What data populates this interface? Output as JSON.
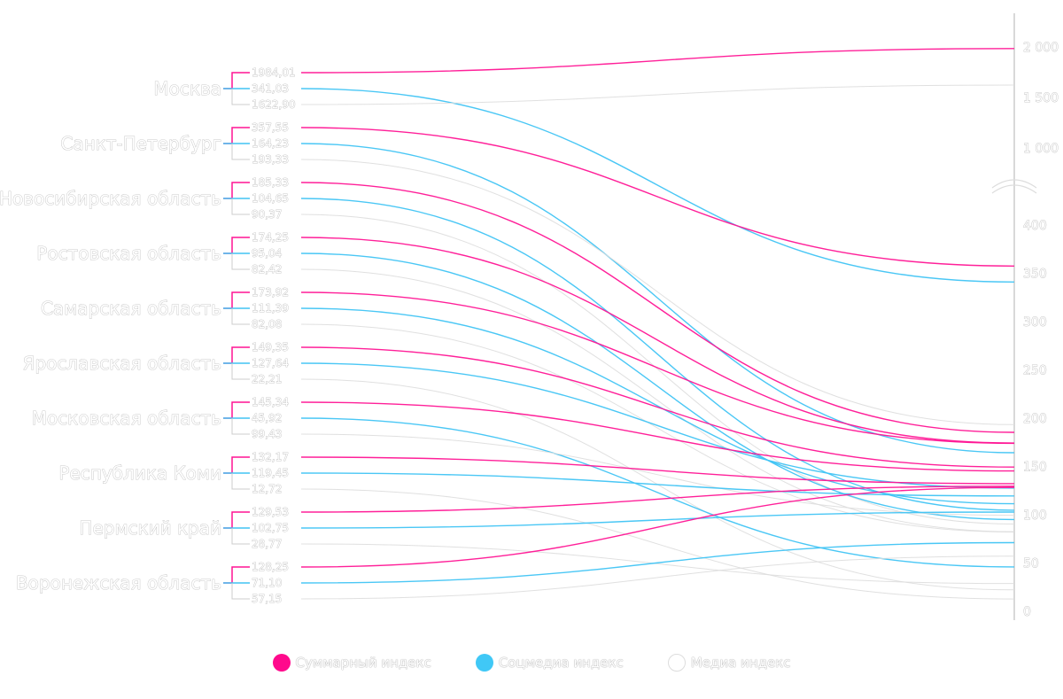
{
  "chart_data": {
    "type": "line",
    "title": "",
    "series": [
      {
        "name": "Суммарный индекс",
        "color": "#ff1493"
      },
      {
        "name": "Соцмедиа индекс",
        "color": "#40c4f4"
      },
      {
        "name": "Медиа индекс",
        "color": "#dddddd"
      }
    ],
    "regions": [
      {
        "name": "Москва",
        "values": [
          1984.01,
          341.03,
          1622.9
        ],
        "labels": [
          "1984,01",
          "341,03",
          "1622,90"
        ]
      },
      {
        "name": "Санкт-Петербург",
        "values": [
          357.55,
          164.23,
          193.33
        ],
        "labels": [
          "357,55",
          "164,23",
          "193,33"
        ]
      },
      {
        "name": "Новосибирская область",
        "values": [
          185.33,
          104.65,
          90.37
        ],
        "labels": [
          "185,33",
          "104,65",
          "90,37"
        ]
      },
      {
        "name": "Ростовская область",
        "values": [
          174.25,
          95.04,
          82.42
        ],
        "labels": [
          "174,25",
          "95,04",
          "82,42"
        ]
      },
      {
        "name": "Самарская область",
        "values": [
          173.92,
          111.39,
          82.08
        ],
        "labels": [
          "173,92",
          "111,39",
          "82,08"
        ]
      },
      {
        "name": "Ярославская область",
        "values": [
          149.35,
          127.64,
          22.21
        ],
        "labels": [
          "149,35",
          "127,64",
          "22,21"
        ]
      },
      {
        "name": "Московская область",
        "values": [
          145.34,
          45.92,
          99.43
        ],
        "labels": [
          "145,34",
          "45,92",
          "99,43"
        ]
      },
      {
        "name": "Республика Коми",
        "values": [
          132.17,
          119.45,
          12.72
        ],
        "labels": [
          "132,17",
          "119,45",
          "12,72"
        ]
      },
      {
        "name": "Пермский край",
        "values": [
          129.53,
          102.75,
          28.77
        ],
        "labels": [
          "129,53",
          "102,75",
          "28,77"
        ]
      },
      {
        "name": "Воронежская область",
        "values": [
          128.25,
          71.1,
          57.15
        ],
        "labels": [
          "128,25",
          "71,10",
          "57,15"
        ]
      }
    ],
    "y_axis": {
      "scale": "broken",
      "lower_range": [
        0,
        400
      ],
      "upper_range": [
        1000,
        2000
      ],
      "ticks": [
        {
          "value": 0,
          "label": "0"
        },
        {
          "value": 50,
          "label": "50"
        },
        {
          "value": 100,
          "label": "100"
        },
        {
          "value": 150,
          "label": "150"
        },
        {
          "value": 200,
          "label": "200"
        },
        {
          "value": 250,
          "label": "250"
        },
        {
          "value": 300,
          "label": "300"
        },
        {
          "value": 350,
          "label": "350"
        },
        {
          "value": 400,
          "label": "400"
        },
        {
          "value": 1000,
          "label": "1 000"
        },
        {
          "value": 1500,
          "label": "1 500"
        },
        {
          "value": 2000,
          "label": "2 000"
        }
      ]
    },
    "grid": false,
    "legend_position": "bottom"
  },
  "legend": [
    "Суммарный индекс",
    "Соцмедиа индекс",
    "Медиа индекс"
  ]
}
